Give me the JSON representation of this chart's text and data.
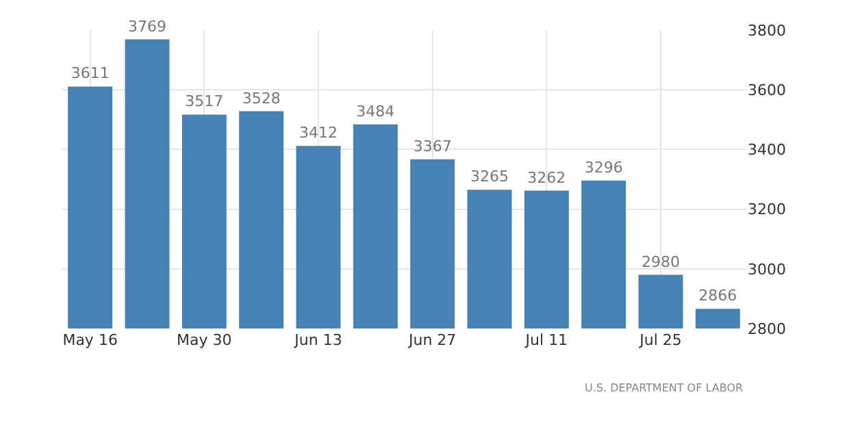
{
  "chart_data": {
    "type": "bar",
    "categories": [
      "May 16",
      null,
      "May 30",
      null,
      "Jun 13",
      null,
      "Jun 27",
      null,
      "Jul 11",
      null,
      "Jul 25",
      null
    ],
    "values": [
      3611,
      3769,
      3517,
      3528,
      3412,
      3484,
      3367,
      3265,
      3262,
      3296,
      2980,
      2866
    ],
    "color": "#4682b4",
    "data_labels": true,
    "ylim": [
      2800,
      3800
    ],
    "yticks": [
      2800,
      3000,
      3200,
      3400,
      3600,
      3800
    ],
    "grid": true,
    "annotations": [
      "U.S. DEPARTMENT OF LABOR"
    ]
  }
}
